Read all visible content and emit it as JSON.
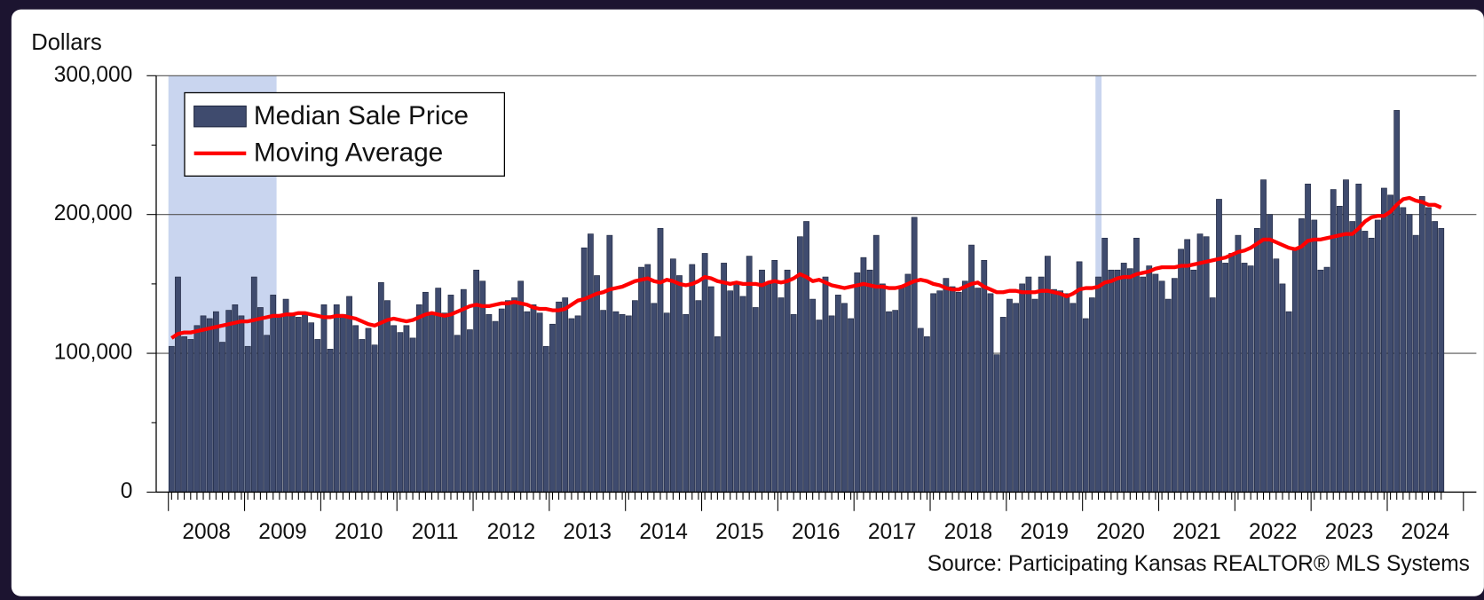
{
  "chart_data": {
    "type": "bar",
    "y_label": "Dollars",
    "source": "Source: Participating Kansas REALTOR® MLS Systems",
    "xlim": [
      2007.84,
      2025.17
    ],
    "xticks": [
      {
        "value": 2008.5,
        "label": "2008"
      },
      {
        "value": 2009.5,
        "label": "2009"
      },
      {
        "value": 2010.5,
        "label": "2010"
      },
      {
        "value": 2011.5,
        "label": "2011"
      },
      {
        "value": 2012.5,
        "label": "2012"
      },
      {
        "value": 2013.5,
        "label": "2013"
      },
      {
        "value": 2014.5,
        "label": "2014"
      },
      {
        "value": 2015.5,
        "label": "2015"
      },
      {
        "value": 2016.5,
        "label": "2016"
      },
      {
        "value": 2017.5,
        "label": "2017"
      },
      {
        "value": 2018.5,
        "label": "2018"
      },
      {
        "value": 2019.5,
        "label": "2019"
      },
      {
        "value": 2020.5,
        "label": "2020"
      },
      {
        "value": 2021.5,
        "label": "2021"
      },
      {
        "value": 2022.5,
        "label": "2022"
      },
      {
        "value": 2023.5,
        "label": "2023"
      },
      {
        "value": 2024.5,
        "label": "2024"
      }
    ],
    "ylim": [
      0,
      300000
    ],
    "yticks": [
      0,
      {
        "value": 100000,
        "label": "100,000"
      },
      {
        "value": 200000,
        "label": "200,000"
      },
      {
        "value": 300000,
        "label": "300,000"
      }
    ],
    "yminorticks": [
      50000,
      150000,
      250000
    ],
    "grid": true,
    "legend_position": "upper-left",
    "shaded_periods": [
      [
        2008.0,
        2009.42
      ],
      [
        2020.17,
        2020.25
      ]
    ],
    "shade_color": "#c9d5ef",
    "x": [
      2008.042,
      2008.125,
      2008.208,
      2008.292,
      2008.375,
      2008.458,
      2008.542,
      2008.625,
      2008.708,
      2008.792,
      2008.875,
      2008.958,
      2009.042,
      2009.125,
      2009.208,
      2009.292,
      2009.375,
      2009.458,
      2009.542,
      2009.625,
      2009.708,
      2009.792,
      2009.875,
      2009.958,
      2010.042,
      2010.125,
      2010.208,
      2010.292,
      2010.375,
      2010.458,
      2010.542,
      2010.625,
      2010.708,
      2010.792,
      2010.875,
      2010.958,
      2011.042,
      2011.125,
      2011.208,
      2011.292,
      2011.375,
      2011.458,
      2011.542,
      2011.625,
      2011.708,
      2011.792,
      2011.875,
      2011.958,
      2012.042,
      2012.125,
      2012.208,
      2012.292,
      2012.375,
      2012.458,
      2012.542,
      2012.625,
      2012.708,
      2012.792,
      2012.875,
      2012.958,
      2013.042,
      2013.125,
      2013.208,
      2013.292,
      2013.375,
      2013.458,
      2013.542,
      2013.625,
      2013.708,
      2013.792,
      2013.875,
      2013.958,
      2014.042,
      2014.125,
      2014.208,
      2014.292,
      2014.375,
      2014.458,
      2014.542,
      2014.625,
      2014.708,
      2014.792,
      2014.875,
      2014.958,
      2015.042,
      2015.125,
      2015.208,
      2015.292,
      2015.375,
      2015.458,
      2015.542,
      2015.625,
      2015.708,
      2015.792,
      2015.875,
      2015.958,
      2016.042,
      2016.125,
      2016.208,
      2016.292,
      2016.375,
      2016.458,
      2016.542,
      2016.625,
      2016.708,
      2016.792,
      2016.875,
      2016.958,
      2017.042,
      2017.125,
      2017.208,
      2017.292,
      2017.375,
      2017.458,
      2017.542,
      2017.625,
      2017.708,
      2017.792,
      2017.875,
      2017.958,
      2018.042,
      2018.125,
      2018.208,
      2018.292,
      2018.375,
      2018.458,
      2018.542,
      2018.625,
      2018.708,
      2018.792,
      2018.875,
      2018.958,
      2019.042,
      2019.125,
      2019.208,
      2019.292,
      2019.375,
      2019.458,
      2019.542,
      2019.625,
      2019.708,
      2019.792,
      2019.875,
      2019.958,
      2020.042,
      2020.125,
      2020.208,
      2020.292,
      2020.375,
      2020.458,
      2020.542,
      2020.625,
      2020.708,
      2020.792,
      2020.875,
      2020.958,
      2021.042,
      2021.125,
      2021.208,
      2021.292,
      2021.375,
      2021.458,
      2021.542,
      2021.625,
      2021.708,
      2021.792,
      2021.875,
      2021.958,
      2022.042,
      2022.125,
      2022.208,
      2022.292,
      2022.375,
      2022.458,
      2022.542,
      2022.625,
      2022.708,
      2022.792,
      2022.875,
      2022.958,
      2023.042,
      2023.125,
      2023.208,
      2023.292,
      2023.375,
      2023.458,
      2023.542,
      2023.625,
      2023.708,
      2023.792,
      2023.875,
      2023.958,
      2024.042,
      2024.125,
      2024.208,
      2024.292,
      2024.375,
      2024.458,
      2024.542,
      2024.625,
      2024.708
    ],
    "series": [
      {
        "name": "Median Sale Price",
        "type": "bar",
        "color": "#3f4b6e",
        "values": [
          105000,
          155000,
          112000,
          110000,
          120000,
          127000,
          125000,
          130000,
          108000,
          131000,
          135000,
          127000,
          105000,
          155000,
          133000,
          113000,
          142000,
          128000,
          139000,
          127000,
          126000,
          128000,
          122000,
          110000,
          135000,
          103000,
          135000,
          128000,
          141000,
          120000,
          110000,
          118000,
          106000,
          151000,
          138000,
          120000,
          115000,
          120000,
          111000,
          135000,
          144000,
          128000,
          147000,
          129000,
          142000,
          113000,
          146000,
          117000,
          160000,
          152000,
          128000,
          123000,
          132000,
          138000,
          140000,
          152000,
          130000,
          135000,
          129000,
          105000,
          121000,
          137000,
          140000,
          125000,
          127000,
          176000,
          186000,
          156000,
          131000,
          185000,
          130000,
          128000,
          127000,
          138000,
          162000,
          164000,
          136000,
          190000,
          129000,
          168000,
          156000,
          128000,
          164000,
          138000,
          172000,
          148000,
          112000,
          165000,
          145000,
          150000,
          141000,
          170000,
          133000,
          160000,
          150000,
          167000,
          140000,
          160000,
          128000,
          184000,
          195000,
          139000,
          124000,
          155000,
          127000,
          142000,
          136000,
          125000,
          158000,
          169000,
          160000,
          185000,
          150000,
          130000,
          131000,
          148000,
          157000,
          198000,
          118000,
          112000,
          143000,
          145000,
          154000,
          148000,
          144000,
          152000,
          178000,
          147000,
          167000,
          143000,
          99000,
          126000,
          139000,
          136000,
          150000,
          155000,
          139000,
          155000,
          170000,
          146000,
          145000,
          143000,
          136000,
          166000,
          125000,
          140000,
          155000,
          183000,
          160000,
          160000,
          165000,
          161000,
          183000,
          155000,
          163000,
          157000,
          152000,
          139000,
          154000,
          175000,
          182000,
          160000,
          186000,
          184000,
          140000,
          211000,
          165000,
          172000,
          185000,
          165000,
          163000,
          190000,
          225000,
          200000,
          168000,
          150000,
          130000,
          175000,
          197000,
          222000,
          196000,
          160000,
          162000,
          218000,
          206000,
          225000,
          195000,
          222000,
          188000,
          183000,
          196000,
          219000,
          214000,
          275000,
          205000,
          200000,
          185000,
          213000,
          205000,
          195000,
          190000
        ]
      },
      {
        "name": "Moving Average",
        "type": "line",
        "color": "#ff0000",
        "values": [
          111000,
          114000,
          115000,
          115000,
          116000,
          117000,
          118000,
          119000,
          120000,
          121000,
          122000,
          123000,
          123000,
          124000,
          125000,
          126000,
          127000,
          127000,
          128000,
          128000,
          129000,
          129000,
          128000,
          127000,
          126000,
          126000,
          127000,
          127000,
          126000,
          125000,
          123000,
          121000,
          120000,
          122000,
          124000,
          125000,
          124000,
          123000,
          124000,
          126000,
          128000,
          129000,
          128000,
          127000,
          128000,
          130000,
          132000,
          134000,
          135000,
          134000,
          134000,
          135000,
          136000,
          136000,
          137000,
          136000,
          135000,
          133000,
          132000,
          132000,
          131000,
          131000,
          132000,
          135000,
          138000,
          139000,
          141000,
          143000,
          144000,
          146000,
          147000,
          148000,
          150000,
          152000,
          153000,
          154000,
          152000,
          151000,
          153000,
          152000,
          150000,
          149000,
          150000,
          152000,
          155000,
          154000,
          152000,
          151000,
          150000,
          151000,
          150000,
          150000,
          150000,
          149000,
          151000,
          152000,
          151000,
          152000,
          154000,
          157000,
          155000,
          152000,
          153000,
          151000,
          149000,
          148000,
          147000,
          148000,
          149000,
          150000,
          149000,
          148000,
          148000,
          147000,
          147000,
          148000,
          150000,
          152000,
          153000,
          152000,
          150000,
          149000,
          147000,
          146000,
          146000,
          148000,
          150000,
          151000,
          148000,
          146000,
          144000,
          144000,
          145000,
          145000,
          144000,
          144000,
          144000,
          145000,
          145000,
          144000,
          143000,
          141000,
          143000,
          146000,
          147000,
          147000,
          148000,
          151000,
          152000,
          154000,
          155000,
          155000,
          157000,
          158000,
          159000,
          161000,
          162000,
          162000,
          162000,
          163000,
          163000,
          164000,
          165000,
          166000,
          167000,
          168000,
          169000,
          171000,
          173000,
          174000,
          176000,
          179000,
          182000,
          182000,
          180000,
          178000,
          176000,
          175000,
          177000,
          181000,
          182000,
          182000,
          183000,
          184000,
          185000,
          186000,
          186000,
          190000,
          195000,
          198000,
          199000,
          199000,
          202000,
          207000,
          211000,
          212000,
          210000,
          209000,
          207000,
          207000,
          205000
        ]
      }
    ]
  }
}
